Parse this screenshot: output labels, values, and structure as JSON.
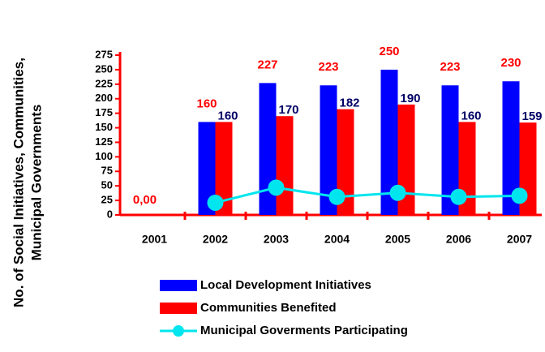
{
  "chart_data": {
    "type": "bar",
    "ylabel": [
      "No. of Social Initiatives, Communities,",
      "Municipal Governments"
    ],
    "categories": [
      "2001",
      "2002",
      "2003",
      "2004",
      "2005",
      "2006",
      "2007"
    ],
    "series": [
      {
        "name": "Local Development Initiatives",
        "color": "#0000ff",
        "label_color": "#ff0000",
        "values": [
          0,
          160,
          227,
          223,
          250,
          223,
          230
        ],
        "value_labels": [
          "0,00",
          "160",
          "227",
          "223",
          "250",
          "223",
          "230"
        ]
      },
      {
        "name": "Communities Benefited",
        "color": "#ff0000",
        "label_color": "#000066",
        "values": [
          null,
          160,
          170,
          182,
          190,
          160,
          159
        ],
        "value_labels": [
          null,
          "160",
          "170",
          "182",
          "190",
          "160",
          "159"
        ]
      },
      {
        "name": "Municipal Goverments Participating",
        "type": "line",
        "color": "#00e5ee",
        "values": [
          null,
          21,
          47,
          31,
          38,
          31,
          33
        ]
      }
    ],
    "ylim": [
      0,
      275
    ],
    "yticks": [
      0,
      25,
      50,
      75,
      100,
      125,
      150,
      175,
      200,
      225,
      250,
      275
    ],
    "axis_color": "#ff0000"
  }
}
